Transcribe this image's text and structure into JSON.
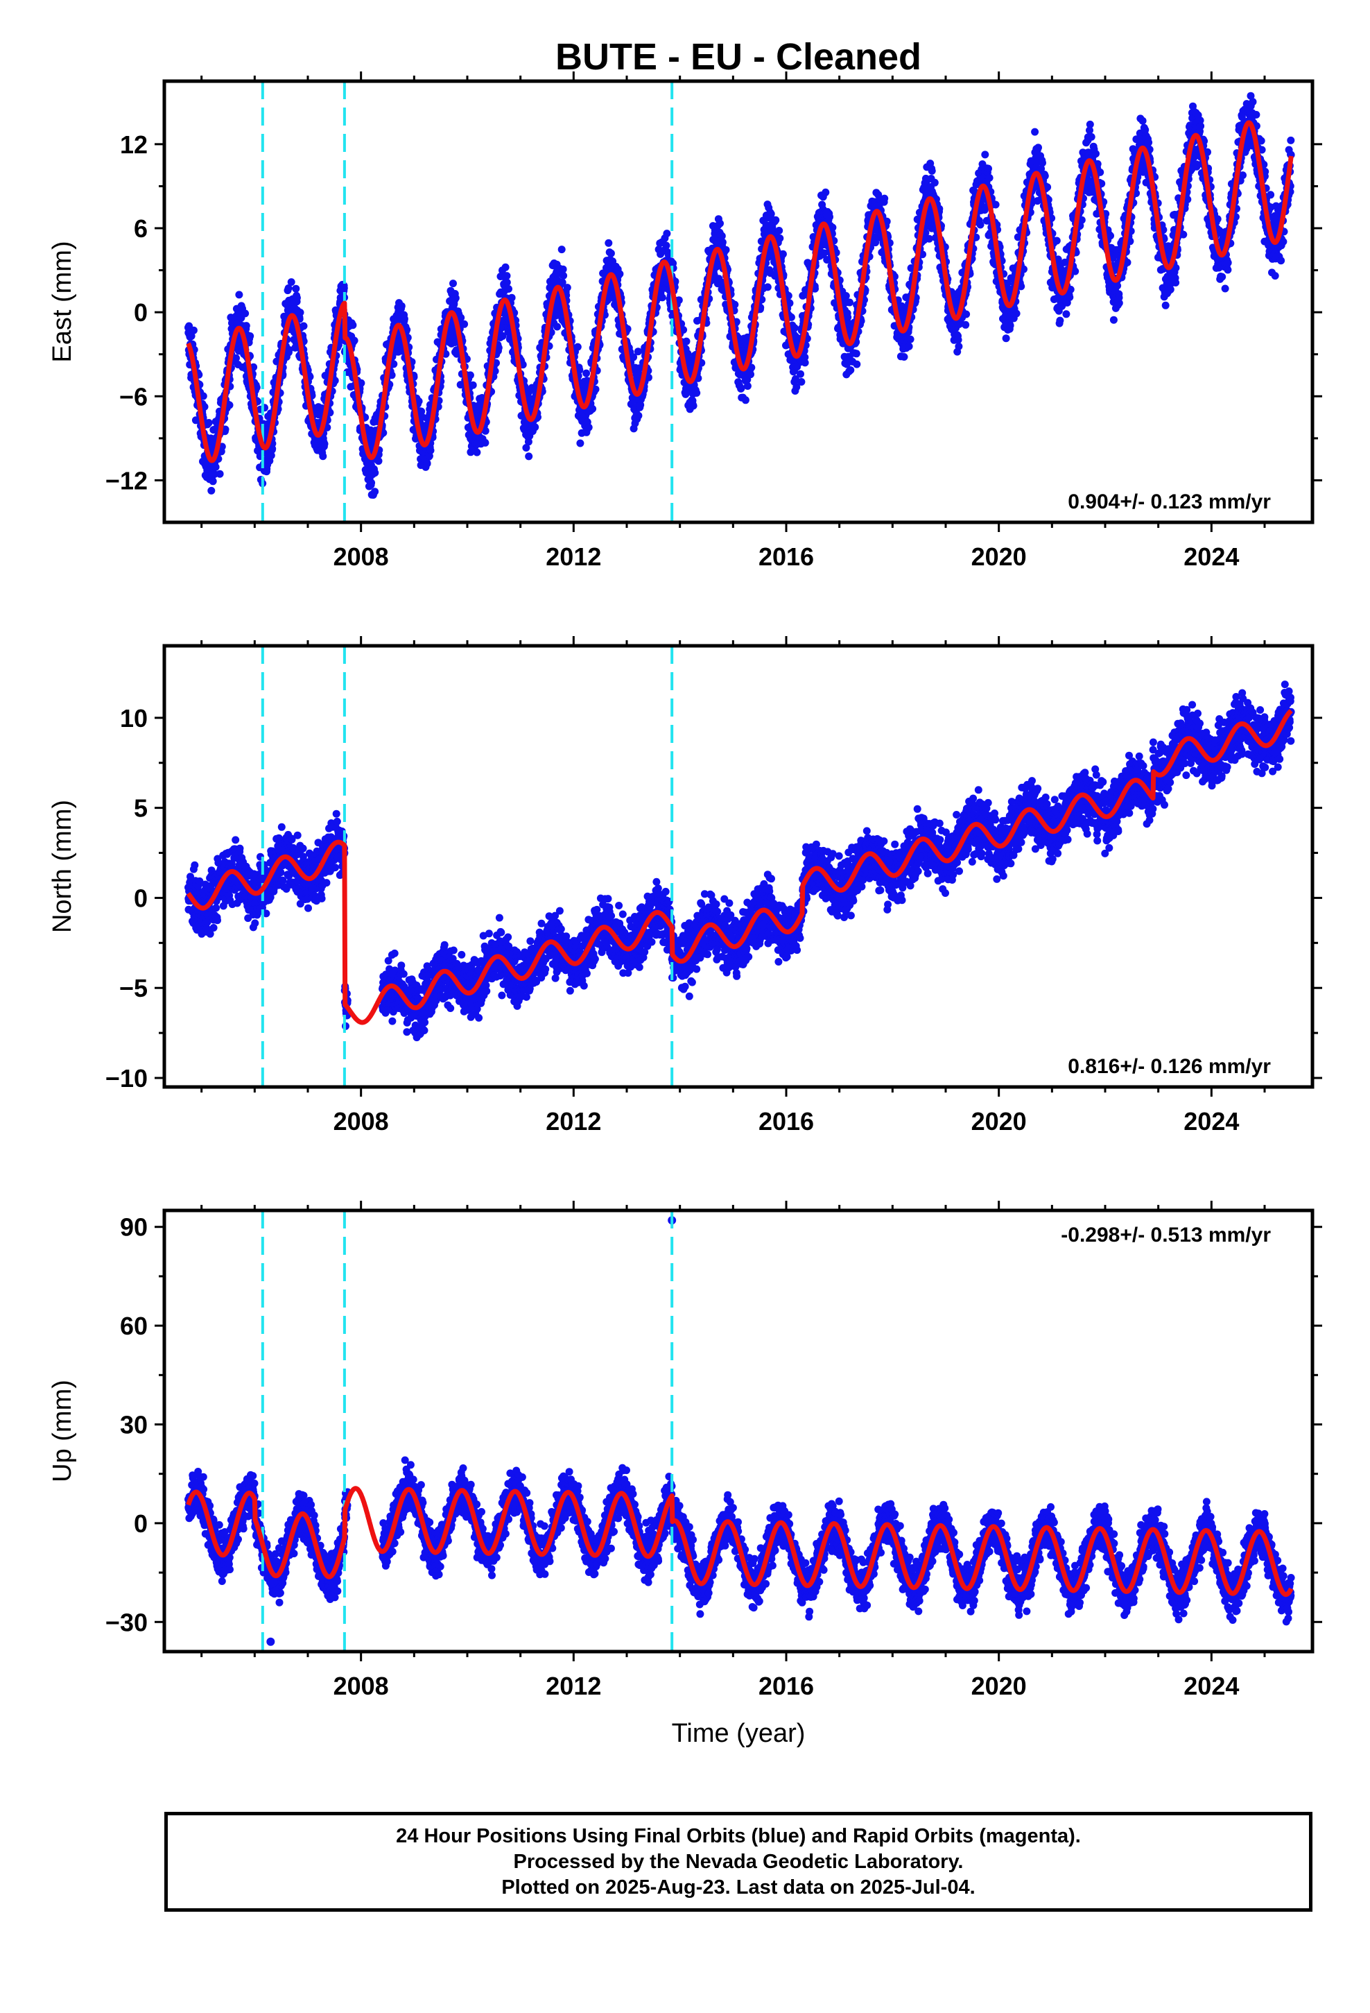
{
  "title": "BUTE  - EU - Cleaned",
  "colors": {
    "data_points": "#1010ee",
    "model_line": "#ee1111",
    "break_lines": "#22e4f0"
  },
  "footer": {
    "line1": "24 Hour Positions Using Final Orbits (blue) and Rapid Orbits (magenta).",
    "line2": "Processed by the Nevada Geodetic Laboratory.",
    "line3": "Plotted on 2025-Aug-23. Last data on 2025-Jul-04."
  },
  "chart_data": [
    {
      "type": "scatter",
      "component": "east",
      "title": "BUTE  - EU - Cleaned",
      "xlabel": "",
      "ylabel": "East (mm)",
      "xlim": [
        2004.3,
        2025.9
      ],
      "ylim": [
        -15,
        16.5
      ],
      "xticks": [
        2008,
        2012,
        2016,
        2020,
        2024
      ],
      "xtick_labels": [
        "2008",
        "2012",
        "2016",
        "2020",
        "2024"
      ],
      "yticks": [
        -12,
        -6,
        0,
        6,
        12
      ],
      "ytick_labels": [
        "−12",
        "−6",
        "0",
        "6",
        "12"
      ],
      "rate_label": "0.904+/- 0.123 mm/yr",
      "rate_position": "bottom-right",
      "grid": false,
      "break_epochs": [
        2006.15,
        2007.69,
        2013.85
      ],
      "model": {
        "offset_at_start": -6.5,
        "rate": 0.904,
        "seasonal_amplitude": 4.5,
        "seasonal_phase_year": 0.45,
        "annual_start": 2004.75,
        "data_start": 2004.75,
        "data_end": 2025.5,
        "step_offsets": [
          [
            2007.69,
            -2.5
          ]
        ]
      },
      "scatter_noise": 1.6
    },
    {
      "type": "scatter",
      "component": "north",
      "xlabel": "",
      "ylabel": "North (mm)",
      "xlim": [
        2004.3,
        2025.9
      ],
      "ylim": [
        -10.5,
        14
      ],
      "xticks": [
        2008,
        2012,
        2016,
        2020,
        2024
      ],
      "xtick_labels": [
        "2008",
        "2012",
        "2016",
        "2020",
        "2024"
      ],
      "yticks": [
        -10,
        -5,
        0,
        5,
        10
      ],
      "ytick_labels": [
        "−10",
        "−5",
        "0",
        "5",
        "10"
      ],
      "rate_label": "0.816+/- 0.126 mm/yr",
      "rate_position": "bottom-right",
      "grid": false,
      "break_epochs": [
        2006.15,
        2007.69,
        2013.85
      ],
      "model": {
        "offset_at_start": 0.0,
        "rate": 0.816,
        "seasonal_amplitude": 0.8,
        "seasonal_phase_year": 0.3,
        "annual_start": 2004.75,
        "data_start": 2004.75,
        "data_end": 2025.5,
        "step_offsets": [
          [
            2007.69,
            -8.8
          ],
          [
            2013.85,
            -1.5
          ],
          [
            2016.3,
            1.5
          ],
          [
            2022.9,
            1.5
          ]
        ]
      },
      "scatter_noise": 1.1
    },
    {
      "type": "scatter",
      "component": "up",
      "xlabel": "Time (year)",
      "ylabel": "Up (mm)",
      "xlim": [
        2004.3,
        2025.9
      ],
      "ylim": [
        -39,
        95
      ],
      "xticks": [
        2008,
        2012,
        2016,
        2020,
        2024
      ],
      "xtick_labels": [
        "2008",
        "2012",
        "2016",
        "2020",
        "2024"
      ],
      "yticks": [
        -30,
        0,
        30,
        60,
        90
      ],
      "ytick_labels": [
        "−30",
        "0",
        "30",
        "60",
        "90"
      ],
      "rate_label": "-0.298+/- 0.513 mm/yr",
      "rate_position": "top-right",
      "grid": false,
      "break_epochs": [
        2006.15,
        2007.69,
        2013.85
      ],
      "model": {
        "offset_at_start": 0.0,
        "rate": -0.298,
        "seasonal_amplitude": 9.5,
        "seasonal_phase_year": 0.65,
        "annual_start": 2004.75,
        "data_start": 2004.75,
        "data_end": 2025.5,
        "step_offsets": [
          [
            2006.0,
            -6.0
          ],
          [
            2007.69,
            8.0
          ],
          [
            2013.85,
            -8.0
          ]
        ]
      },
      "scatter_noise": 5.0,
      "outliers": [
        [
          2013.85,
          92
        ],
        [
          2006.3,
          -36
        ]
      ]
    }
  ]
}
